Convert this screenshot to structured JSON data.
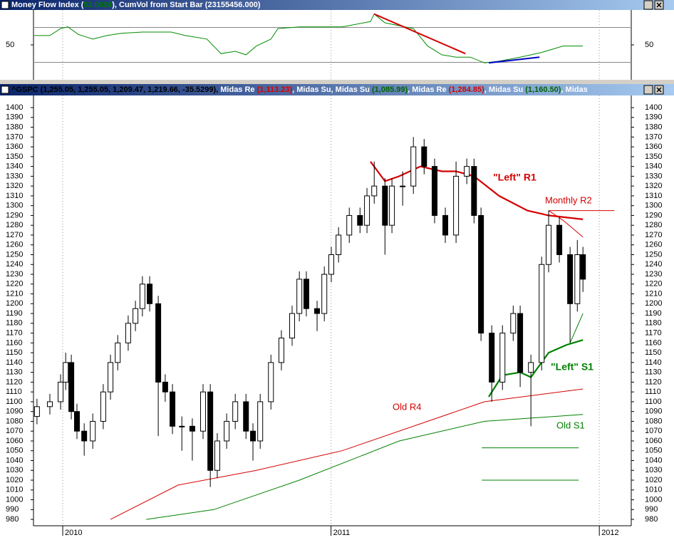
{
  "chart_data": [
    {
      "type": "line",
      "title_segments": [
        {
          "text": "Money Flow Index (",
          "color": "#ffffff"
        },
        {
          "text": "52.0024",
          "color": "#007a00"
        },
        {
          "text": "), CumVol from Start Bar (23155456.000)",
          "color": "#ffffff"
        }
      ],
      "x": [
        2009.894,
        2009.952,
        2009.992,
        2010.019,
        2010.058,
        2010.112,
        2010.165,
        2010.218,
        2010.297,
        2010.404,
        2010.457,
        2010.537,
        2010.59,
        2010.643,
        2010.683,
        2010.722,
        2010.776,
        2010.802,
        2010.882,
        2011.041,
        2011.147,
        2011.161,
        2011.201,
        2011.307,
        2011.36,
        2011.413,
        2011.466,
        2011.519,
        2011.572,
        2011.626,
        2011.705,
        2011.785,
        2011.865,
        2011.939
      ],
      "series": [
        {
          "color": "#008c00",
          "values": [
            66,
            66,
            78,
            81,
            68,
            60,
            66,
            70,
            72,
            72,
            66,
            60,
            35,
            39,
            33,
            48,
            60,
            78,
            81,
            81,
            90,
            103,
            88,
            78,
            48,
            33,
            29,
            29,
            19,
            22,
            29,
            37,
            48,
            48
          ]
        }
      ],
      "trendlines": [
        {
          "color": "#d40000",
          "x": [
            2011.161,
            2011.501
          ],
          "values": [
            103,
            35
          ]
        },
        {
          "color": "#0000c8",
          "x": [
            2011.588,
            2011.777
          ],
          "values": [
            19,
            29
          ]
        }
      ],
      "levels": [
        80,
        20
      ],
      "ylim": [
        -10,
        110
      ],
      "yticks": [
        50
      ],
      "xlim": [
        2009.891,
        2012.119
      ],
      "xticks": [
        2010,
        2011,
        2012
      ]
    },
    {
      "type": "candlestick",
      "title_segments": [
        {
          "text": "^GSPC (1,255.05, 1,255.05, 1,209.47, 1,219.66, -35.5299), ",
          "color": "#000000"
        },
        {
          "text": "Midas Re ",
          "color": "#ffffff"
        },
        {
          "text": "(1,113.23)",
          "color": "#d40000"
        },
        {
          "text": ", Midas Su, Midas Su ",
          "color": "#ffffff"
        },
        {
          "text": "(1,085.99)",
          "color": "#006400"
        },
        {
          "text": ", Midas Re ",
          "color": "#ffffff"
        },
        {
          "text": "(1,284.85)",
          "color": "#d40000"
        },
        {
          "text": ", Midas Su ",
          "color": "#ffffff"
        },
        {
          "text": "(1,160.50)",
          "color": "#006400"
        },
        {
          "text": ", Midas ",
          "color": "#ffffff"
        }
      ],
      "x": [
        2009.904,
        2009.952,
        2009.992,
        2010.011,
        2010.032,
        2010.053,
        2010.08,
        2010.112,
        2010.151,
        2010.178,
        2010.205,
        2010.244,
        2010.271,
        2010.297,
        2010.324,
        2010.356,
        2010.382,
        2010.409,
        2010.444,
        2010.483,
        2010.523,
        2010.55,
        2010.576,
        2010.611,
        2010.643,
        2010.683,
        2010.709,
        2010.736,
        2010.776,
        2010.815,
        2010.855,
        2010.882,
        2010.908,
        2010.948,
        2010.975,
        2011.001,
        2011.028,
        2011.068,
        2011.108,
        2011.134,
        2011.161,
        2011.201,
        2011.227,
        2011.267,
        2011.307,
        2011.347,
        2011.386,
        2011.426,
        2011.466,
        2011.506,
        2011.533,
        2011.559,
        2011.599,
        2011.639,
        2011.679,
        2011.705,
        2011.745,
        2011.785,
        2011.811,
        2011.851,
        2011.891,
        2011.918,
        2011.939
      ],
      "open": [
        1085,
        1095,
        1100,
        1120,
        1140,
        1090,
        1070,
        1060,
        1080,
        1110,
        1140,
        1160,
        1180,
        1195,
        1220,
        1200,
        1120,
        1110,
        1075,
        1075,
        1070,
        1110,
        1030,
        1060,
        1080,
        1100,
        1070,
        1060,
        1100,
        1140,
        1165,
        1190,
        1225,
        1195,
        1190,
        1230,
        1250,
        1270,
        1290,
        1280,
        1310,
        1320,
        1280,
        1320,
        1320,
        1360,
        1340,
        1290,
        1270,
        1330,
        1340,
        1290,
        1170,
        1120,
        1170,
        1190,
        1130,
        1140,
        1240,
        1280,
        1250,
        1200,
        1250
      ],
      "high": [
        1103,
        1108,
        1128,
        1150,
        1148,
        1098,
        1078,
        1088,
        1118,
        1148,
        1168,
        1188,
        1203,
        1228,
        1228,
        1208,
        1128,
        1118,
        1085,
        1083,
        1118,
        1118,
        1068,
        1088,
        1108,
        1108,
        1078,
        1108,
        1148,
        1173,
        1198,
        1233,
        1233,
        1203,
        1238,
        1258,
        1278,
        1298,
        1298,
        1318,
        1345,
        1328,
        1328,
        1335,
        1370,
        1368,
        1348,
        1298,
        1345,
        1348,
        1348,
        1298,
        1178,
        1178,
        1198,
        1198,
        1148,
        1248,
        1295,
        1288,
        1258,
        1265,
        1258
      ],
      "low": [
        1077,
        1087,
        1092,
        1112,
        1082,
        1062,
        1045,
        1052,
        1072,
        1102,
        1132,
        1152,
        1172,
        1187,
        1192,
        1065,
        1100,
        1067,
        1050,
        1040,
        1062,
        1013,
        1022,
        1052,
        1072,
        1062,
        1040,
        1052,
        1092,
        1132,
        1157,
        1182,
        1187,
        1172,
        1182,
        1222,
        1242,
        1262,
        1272,
        1272,
        1302,
        1250,
        1272,
        1300,
        1312,
        1332,
        1282,
        1262,
        1262,
        1322,
        1282,
        1162,
        1100,
        1112,
        1162,
        1115,
        1075,
        1132,
        1232,
        1242,
        1160,
        1192,
        1212
      ],
      "close": [
        1095,
        1100,
        1120,
        1140,
        1090,
        1070,
        1060,
        1080,
        1110,
        1140,
        1160,
        1180,
        1195,
        1220,
        1200,
        1120,
        1110,
        1075,
        1075,
        1070,
        1110,
        1030,
        1060,
        1080,
        1100,
        1070,
        1060,
        1100,
        1140,
        1165,
        1190,
        1225,
        1195,
        1190,
        1230,
        1250,
        1270,
        1290,
        1280,
        1310,
        1320,
        1280,
        1320,
        1320,
        1360,
        1340,
        1290,
        1270,
        1330,
        1340,
        1290,
        1170,
        1120,
        1170,
        1190,
        1130,
        1140,
        1240,
        1280,
        1250,
        1200,
        1250,
        1225
      ],
      "series": [
        {
          "name": "\"Left\" R1",
          "color": "#d40000",
          "width": 2.2,
          "x": [
            2011.147,
            2011.201,
            2011.254,
            2011.333,
            2011.413,
            2011.466,
            2011.533,
            2011.626,
            2011.732,
            2011.811,
            2011.939
          ],
          "values": [
            1345,
            1325,
            1330,
            1340,
            1335,
            1335,
            1330,
            1310,
            1295,
            1290,
            1286
          ]
        },
        {
          "name": "Monthly R2",
          "color": "#d40000",
          "width": 1,
          "x": [
            2011.811,
            2012.056
          ],
          "values": [
            1295,
            1295
          ]
        },
        {
          "color": "#d40000",
          "width": 1,
          "x": [
            2011.811,
            2011.865,
            2011.939
          ],
          "values": [
            1295,
            1285,
            1268
          ]
        },
        {
          "name": "\"Left\" S1",
          "color": "#008000",
          "width": 2.2,
          "x": [
            2011.588,
            2011.639,
            2011.705,
            2011.745,
            2011.811,
            2011.878,
            2011.939
          ],
          "values": [
            1105,
            1127,
            1130,
            1125,
            1150,
            1158,
            1163
          ]
        },
        {
          "color": "#008000",
          "width": 1,
          "x": [
            2011.891,
            2011.939
          ],
          "values": [
            1160,
            1190
          ]
        },
        {
          "name": "Old R4",
          "color": "#d40000",
          "width": 1,
          "x": [
            2010.178,
            2010.43,
            2010.722,
            2011.041,
            2011.36,
            2011.572,
            2011.939
          ],
          "values": [
            980,
            1015,
            1030,
            1050,
            1080,
            1100,
            1113
          ]
        },
        {
          "name": "Old S1",
          "color": "#008000",
          "width": 1,
          "x": [
            2010.311,
            2010.563,
            2010.882,
            2011.254,
            2011.572,
            2011.939
          ],
          "values": [
            980,
            990,
            1020,
            1060,
            1080,
            1087
          ]
        },
        {
          "color": "#008000",
          "width": 1,
          "x": [
            2011.562,
            2011.923
          ],
          "values": [
            1053,
            1053
          ]
        },
        {
          "color": "#008000",
          "width": 1,
          "x": [
            2011.562,
            2011.923
          ],
          "values": [
            1020,
            1020
          ]
        }
      ],
      "ylim": [
        973.5,
        1412.4
      ],
      "yticks": [
        980,
        990,
        1000,
        1010,
        1020,
        1030,
        1040,
        1050,
        1060,
        1070,
        1080,
        1090,
        1100,
        1110,
        1120,
        1130,
        1140,
        1150,
        1160,
        1170,
        1180,
        1190,
        1200,
        1210,
        1220,
        1230,
        1240,
        1250,
        1260,
        1270,
        1280,
        1290,
        1300,
        1310,
        1320,
        1330,
        1340,
        1350,
        1360,
        1370,
        1380,
        1390,
        1400
      ],
      "xlim": [
        2009.891,
        2012.119
      ],
      "xticks": [
        2010,
        2011,
        2012
      ]
    }
  ]
}
